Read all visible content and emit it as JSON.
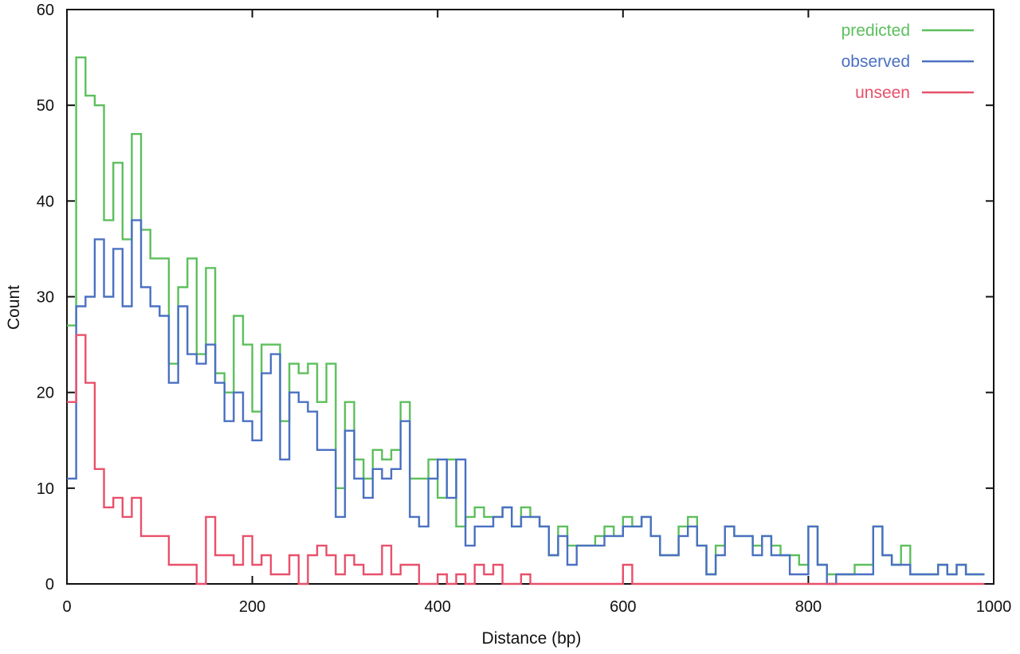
{
  "chart_data": {
    "type": "line",
    "step": true,
    "xlabel": "Distance (bp)",
    "ylabel": "Count",
    "xlim": [
      0,
      1000
    ],
    "ylim": [
      0,
      60
    ],
    "x_ticks": [
      0,
      200,
      400,
      600,
      800,
      1000
    ],
    "y_ticks": [
      0,
      10,
      20,
      30,
      40,
      50,
      60
    ],
    "grid": false,
    "legend_position": "top-right",
    "bin_width": 10,
    "x": [
      0,
      10,
      20,
      30,
      40,
      50,
      60,
      70,
      80,
      90,
      100,
      110,
      120,
      130,
      140,
      150,
      160,
      170,
      180,
      190,
      200,
      210,
      220,
      230,
      240,
      250,
      260,
      270,
      280,
      290,
      300,
      310,
      320,
      330,
      340,
      350,
      360,
      370,
      380,
      390,
      400,
      410,
      420,
      430,
      440,
      450,
      460,
      470,
      480,
      490,
      500,
      510,
      520,
      530,
      540,
      550,
      560,
      570,
      580,
      590,
      600,
      610,
      620,
      630,
      640,
      650,
      660,
      670,
      680,
      690,
      700,
      710,
      720,
      730,
      740,
      750,
      760,
      770,
      780,
      790,
      800,
      810,
      820,
      830,
      840,
      850,
      860,
      870,
      880,
      890,
      900,
      910,
      920,
      930,
      940,
      950,
      960,
      970,
      980
    ],
    "series": [
      {
        "name": "predicted",
        "color": "#5cbf5c",
        "values": [
          27,
          55,
          51,
          50,
          38,
          44,
          36,
          47,
          37,
          34,
          34,
          23,
          31,
          34,
          24,
          33,
          22,
          20,
          28,
          25,
          18,
          25,
          25,
          17,
          23,
          22,
          23,
          19,
          23,
          10,
          19,
          13,
          11,
          14,
          13,
          14,
          19,
          11,
          11,
          13,
          9,
          13,
          6,
          7,
          8,
          7,
          7,
          8,
          6,
          8,
          7,
          6,
          3,
          6,
          4,
          4,
          4,
          5,
          6,
          5,
          7,
          6,
          7,
          5,
          3,
          3,
          6,
          7,
          4,
          1,
          4,
          6,
          5,
          5,
          4,
          5,
          4,
          3,
          3,
          2,
          6,
          2,
          1,
          1,
          1,
          2,
          2,
          6,
          3,
          2,
          4,
          1,
          1,
          1,
          2,
          1,
          2,
          1,
          1
        ]
      },
      {
        "name": "observed",
        "color": "#4a70c2",
        "values": [
          11,
          29,
          30,
          36,
          30,
          35,
          29,
          38,
          31,
          29,
          28,
          21,
          29,
          24,
          23,
          25,
          21,
          17,
          20,
          17,
          15,
          22,
          24,
          13,
          20,
          19,
          18,
          14,
          14,
          7,
          16,
          11,
          9,
          12,
          11,
          12,
          17,
          7,
          6,
          11,
          13,
          9,
          13,
          4,
          6,
          6,
          7,
          8,
          6,
          7,
          7,
          6,
          3,
          5,
          2,
          4,
          4,
          4,
          5,
          5,
          6,
          6,
          7,
          5,
          3,
          3,
          5,
          6,
          4,
          1,
          3,
          6,
          5,
          5,
          3,
          5,
          3,
          3,
          1,
          1,
          6,
          2,
          0,
          1,
          1,
          1,
          1,
          6,
          3,
          2,
          2,
          1,
          1,
          1,
          2,
          1,
          2,
          1,
          1
        ]
      },
      {
        "name": "unseen",
        "color": "#e8506a",
        "values": [
          19,
          26,
          21,
          12,
          8,
          9,
          7,
          9,
          5,
          5,
          5,
          2,
          2,
          2,
          0,
          7,
          3,
          3,
          2,
          5,
          2,
          3,
          1,
          1,
          3,
          0,
          3,
          4,
          3,
          1,
          3,
          2,
          1,
          1,
          4,
          1,
          2,
          2,
          0,
          0,
          1,
          0,
          1,
          0,
          2,
          1,
          2,
          0,
          0,
          1,
          0,
          0,
          0,
          0,
          0,
          0,
          0,
          0,
          0,
          0,
          2,
          0,
          0,
          0,
          0,
          0,
          0,
          0,
          0,
          0,
          0,
          0,
          0,
          0,
          0,
          0,
          0,
          0,
          0,
          0,
          0,
          0,
          0,
          0,
          0,
          0,
          0,
          0,
          0,
          0,
          0,
          0,
          0,
          0,
          0,
          0,
          0,
          0,
          0
        ]
      }
    ]
  }
}
